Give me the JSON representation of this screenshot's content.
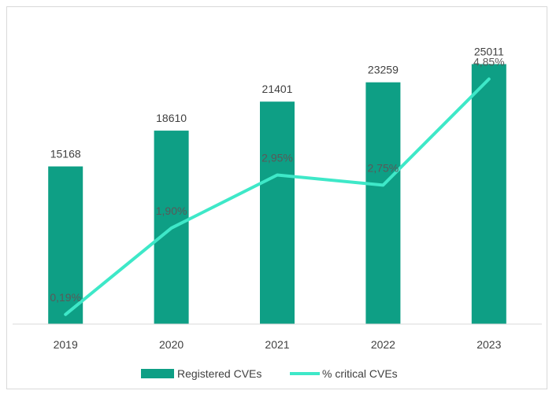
{
  "chart_data": {
    "type": "bar",
    "categories": [
      "2019",
      "2020",
      "2021",
      "2022",
      "2023"
    ],
    "series": [
      {
        "name": "Registered CVEs",
        "type": "bar",
        "axis": "primary",
        "values": [
          15168,
          18610,
          21401,
          23259,
          25011
        ],
        "labels": [
          "15168",
          "18610",
          "21401",
          "23259",
          "25011"
        ],
        "color": "#0e9f85"
      },
      {
        "name": "% critical CVEs",
        "type": "line",
        "axis": "secondary",
        "values": [
          0.19,
          1.9,
          2.95,
          2.75,
          4.85
        ],
        "labels": [
          "0,19%",
          "1,90%",
          "2,95%",
          "2,75%",
          "4,85%"
        ],
        "color": "#3ee8c8"
      }
    ],
    "ylim": [
      0,
      28000
    ],
    "y2lim": [
      0,
      5.2
    ],
    "grid": false,
    "legend_position": "bottom"
  }
}
